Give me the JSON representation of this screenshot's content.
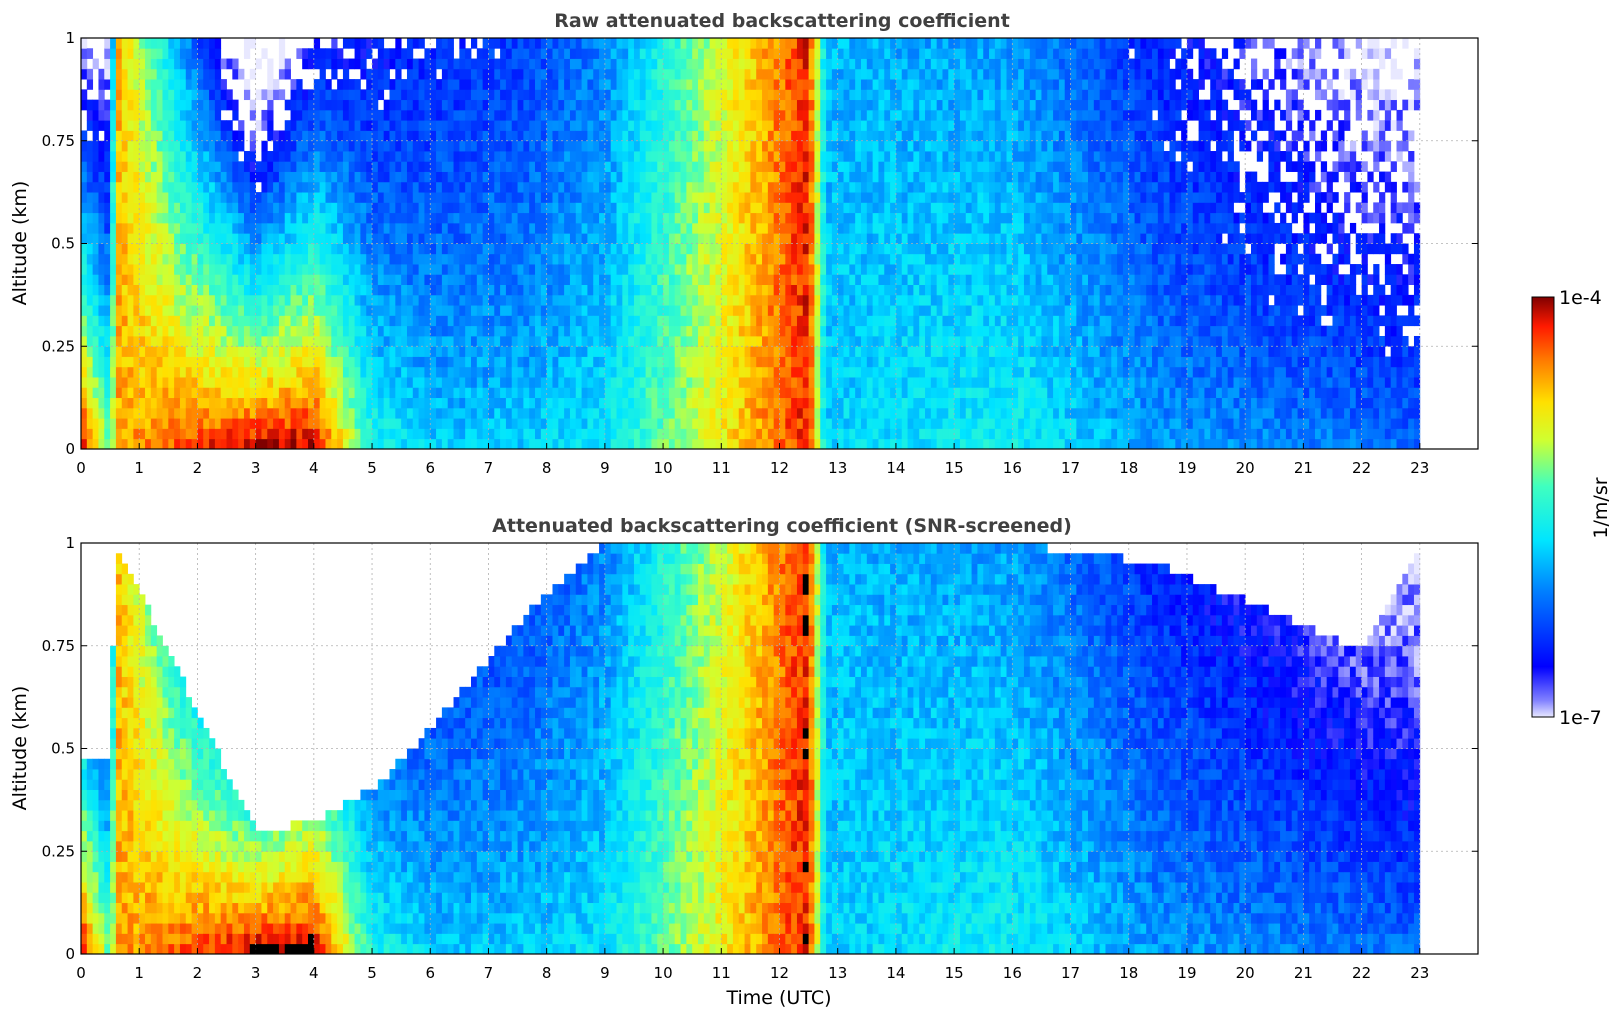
{
  "colors": {
    "title": "#404040",
    "grid": "#b0b0b0",
    "background": "#ffffff"
  },
  "chart_data": [
    {
      "type": "heatmap",
      "title": "Raw attenuated backscattering coefficient",
      "xlabel": "",
      "ylabel": "Altitude (km)",
      "xlim": [
        0,
        24
      ],
      "ylim": [
        0,
        1
      ],
      "x_ticks": [
        "0",
        "1",
        "2",
        "3",
        "4",
        "5",
        "6",
        "7",
        "8",
        "9",
        "10",
        "11",
        "12",
        "13",
        "14",
        "15",
        "16",
        "17",
        "18",
        "19",
        "20",
        "21",
        "22",
        "23"
      ],
      "y_ticks": [
        "0",
        "0.25",
        "0.5",
        "0.75",
        "1"
      ],
      "grid": true,
      "colormap": "jet (log scale)",
      "z_range": [
        "1e-7",
        "1e-4"
      ],
      "z_units": "1/m/sr",
      "x_bands": [
        0,
        0.5,
        0.6,
        3.0,
        4.0,
        5.0,
        6.0,
        7.6,
        9.0,
        12.5,
        12.8,
        16.0,
        18.5,
        22.0,
        23.0
      ],
      "z_log10_near_surface": [
        -4.0,
        -5.3,
        -4.6,
        -4.0,
        -4.0,
        -5.5,
        -5.8,
        -5.8,
        -5.7,
        -4.2,
        -5.8,
        -5.6,
        -6.0,
        -6.1,
        -6.2
      ],
      "z_log10_at_1km": [
        -7.0,
        -7.0,
        -4.6,
        -7.5,
        -6.7,
        -6.6,
        -6.5,
        -6.4,
        -6.1,
        -4.2,
        -5.9,
        -6.0,
        -6.5,
        -7.0,
        -7.0
      ]
    },
    {
      "type": "heatmap",
      "title": "Attenuated backscattering coefficient (SNR-screened)",
      "xlabel": "Time (UTC)",
      "ylabel": "Altitude (km)",
      "xlim": [
        0,
        24
      ],
      "ylim": [
        0,
        1
      ],
      "x_ticks": [
        "0",
        "1",
        "2",
        "3",
        "4",
        "5",
        "6",
        "7",
        "8",
        "9",
        "10",
        "11",
        "12",
        "13",
        "14",
        "15",
        "16",
        "17",
        "18",
        "19",
        "20",
        "21",
        "22",
        "23"
      ],
      "y_ticks": [
        "0",
        "0.25",
        "0.5",
        "0.75",
        "1"
      ],
      "grid": true,
      "colormap": "jet (log scale)",
      "z_range": [
        "1e-7",
        "1e-4"
      ],
      "z_units": "1/m/sr",
      "x_bands": [
        0,
        0.5,
        0.6,
        3.0,
        4.0,
        5.0,
        6.0,
        7.6,
        9.0,
        12.5,
        12.8,
        16.0,
        18.5,
        22.0,
        23.0
      ],
      "screened_top_km": [
        0.48,
        0.48,
        1.0,
        0.3,
        0.32,
        0.4,
        0.55,
        0.82,
        1.0,
        1.0,
        1.0,
        1.0,
        0.95,
        0.74,
        1.0
      ]
    }
  ],
  "colorbar": {
    "max_label": "1e-4",
    "min_label": "1e-7",
    "units_label": "1/m/sr"
  }
}
